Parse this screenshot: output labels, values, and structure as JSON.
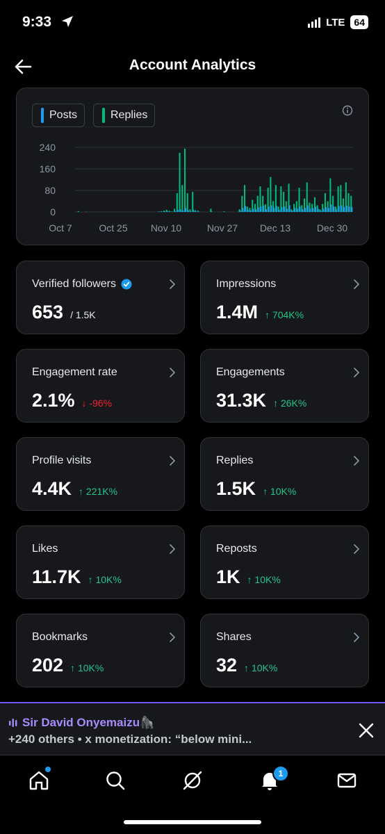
{
  "status_bar": {
    "time": "9:33",
    "network": "LTE",
    "battery": "64"
  },
  "header": {
    "title": "Account Analytics"
  },
  "chart_data": {
    "type": "bar",
    "legend": [
      {
        "name": "Posts",
        "color": "#1d9bf0"
      },
      {
        "name": "Replies",
        "color": "#00ba7c"
      }
    ],
    "x_tick_labels": [
      "Oct 7",
      "Oct 25",
      "Nov 10",
      "Nov 27",
      "Dec 13",
      "Dec 30"
    ],
    "y_ticks": [
      0,
      80,
      160,
      240
    ],
    "ylim": [
      0,
      240
    ],
    "grid": true,
    "series": [
      {
        "name": "Replies",
        "values": [
          0,
          3,
          0,
          0,
          1,
          0,
          0,
          0,
          0,
          0,
          0,
          0,
          0,
          0,
          0,
          0,
          0,
          0,
          0,
          0,
          0,
          0,
          0,
          0,
          0,
          0,
          0,
          0,
          0,
          0,
          0,
          0,
          2,
          3,
          5,
          8,
          4,
          2,
          12,
          70,
          220,
          100,
          235,
          70,
          10,
          75,
          6,
          5,
          0,
          0,
          0,
          0,
          12,
          0,
          0,
          0,
          0,
          2,
          0,
          0,
          0,
          0,
          0,
          10,
          60,
          100,
          20,
          15,
          45,
          30,
          60,
          95,
          60,
          28,
          90,
          130,
          40,
          100,
          20,
          95,
          75,
          40,
          105,
          10,
          30,
          40,
          90,
          25,
          50,
          110,
          35,
          30,
          55,
          25,
          10,
          30,
          70,
          40,
          125,
          60,
          20,
          95,
          100,
          50,
          110,
          70,
          60
        ]
      },
      {
        "name": "Posts",
        "values": [
          0,
          0,
          0,
          0,
          0,
          0,
          0,
          0,
          0,
          0,
          0,
          0,
          0,
          0,
          0,
          0,
          0,
          0,
          0,
          0,
          0,
          0,
          0,
          0,
          0,
          0,
          0,
          0,
          0,
          0,
          0,
          0,
          1,
          1,
          2,
          2,
          1,
          0,
          3,
          8,
          10,
          5,
          15,
          6,
          2,
          8,
          1,
          1,
          0,
          0,
          0,
          0,
          2,
          0,
          0,
          0,
          0,
          1,
          0,
          0,
          0,
          0,
          0,
          5,
          15,
          22,
          8,
          6,
          12,
          10,
          18,
          20,
          24,
          10,
          20,
          25,
          15,
          22,
          8,
          18,
          20,
          12,
          25,
          5,
          15,
          12,
          20,
          10,
          15,
          25,
          12,
          14,
          20,
          12,
          5,
          12,
          18,
          15,
          28,
          20,
          10,
          22,
          25,
          18,
          24,
          20,
          18
        ]
      }
    ]
  },
  "metrics": [
    {
      "label": "Verified followers",
      "value": "653",
      "sub": "/ 1.5K",
      "delta": ""
    },
    {
      "label": "Impressions",
      "value": "1.4M",
      "delta": "↑ 704K%"
    },
    {
      "label": "Engagement rate",
      "value": "2.1%",
      "delta": "↓ -96%"
    },
    {
      "label": "Engagements",
      "value": "31.3K",
      "delta": "↑ 26K%"
    },
    {
      "label": "Profile visits",
      "value": "4.4K",
      "delta": "↑ 221K%"
    },
    {
      "label": "Replies",
      "value": "1.5K",
      "delta": "↑ 10K%"
    },
    {
      "label": "Likes",
      "value": "11.7K",
      "delta": "↑ 10K%"
    },
    {
      "label": "Reposts",
      "value": "1K",
      "delta": "↑ 10K%"
    },
    {
      "label": "Bookmarks",
      "value": "202",
      "delta": "↑ 10K%"
    },
    {
      "label": "Shares",
      "value": "32",
      "delta": "↑ 10K%"
    }
  ],
  "live_bar": {
    "host": "Sir David Onyemaizu",
    "host_emoji": "🦍",
    "subtitle": "+240 others • x monetization: “below mini..."
  },
  "tabbar": {
    "notifications_badge": "1"
  },
  "icons": [
    "location-arrow-icon",
    "signal-icon",
    "back-arrow-icon",
    "info-icon",
    "chevron-right-icon",
    "verified-badge-icon",
    "live-bars-icon",
    "close-icon",
    "home-icon",
    "search-icon",
    "grok-icon",
    "bell-icon",
    "mail-icon"
  ]
}
